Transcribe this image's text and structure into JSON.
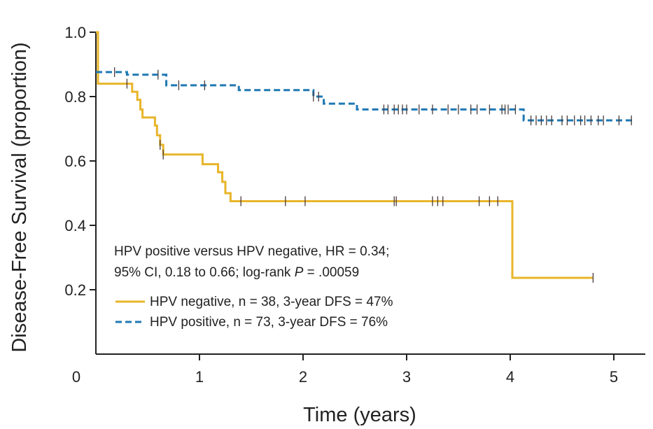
{
  "chart_data": {
    "type": "line",
    "subtype": "kaplan-meier step curves with censor marks",
    "xlabel": "Time (years)",
    "ylabel": "Disease-Free Survival (proportion)",
    "xlim": [
      0,
      5.25
    ],
    "ylim": [
      0,
      1.0
    ],
    "x_ticks": [
      "0",
      "1",
      "2",
      "3",
      "4",
      "5"
    ],
    "y_ticks": [
      "0.2",
      "0.4",
      "0.6",
      "0.8",
      "1.0"
    ],
    "grid": false,
    "annotation": {
      "line1": "HPV positive versus HPV negative, HR = 0.34;",
      "line2_prefix": "95% CI, 0.18 to 0.66; log-rank ",
      "line2_italic": "P",
      "line2_suffix": " = .00059"
    },
    "legend_position": "lower-left",
    "series": [
      {
        "name": "HPV negative, n = 38, 3-year DFS = 47%",
        "color": "#e8b52a",
        "style": "solid",
        "points": [
          [
            0,
            1.0
          ],
          [
            0.02,
            0.84
          ],
          [
            0.3,
            0.84
          ],
          [
            0.35,
            0.815
          ],
          [
            0.4,
            0.79
          ],
          [
            0.43,
            0.76
          ],
          [
            0.45,
            0.735
          ],
          [
            0.55,
            0.735
          ],
          [
            0.57,
            0.71
          ],
          [
            0.59,
            0.68
          ],
          [
            0.62,
            0.65
          ],
          [
            0.65,
            0.62
          ],
          [
            1.03,
            0.62
          ],
          [
            1.03,
            0.59
          ],
          [
            1.15,
            0.59
          ],
          [
            1.18,
            0.565
          ],
          [
            1.22,
            0.535
          ],
          [
            1.25,
            0.5
          ],
          [
            1.3,
            0.475
          ],
          [
            4.02,
            0.475
          ],
          [
            4.02,
            0.237
          ],
          [
            4.8,
            0.237
          ]
        ],
        "censored": [
          0.3,
          0.62,
          0.65,
          1.4,
          1.83,
          2.02,
          2.88,
          2.9,
          3.25,
          3.3,
          3.35,
          3.7,
          3.8,
          3.88,
          4.8
        ]
      },
      {
        "name": "HPV positive, n = 73, 3-year DFS = 76%",
        "color": "#1f78b4",
        "style": "dashed",
        "points": [
          [
            0,
            0.876
          ],
          [
            0.28,
            0.876
          ],
          [
            0.3,
            0.868
          ],
          [
            0.65,
            0.868
          ],
          [
            0.68,
            0.835
          ],
          [
            1.35,
            0.835
          ],
          [
            1.38,
            0.82
          ],
          [
            2.07,
            0.82
          ],
          [
            2.1,
            0.8
          ],
          [
            2.2,
            0.778
          ],
          [
            2.5,
            0.778
          ],
          [
            2.52,
            0.76
          ],
          [
            4.12,
            0.76
          ],
          [
            4.13,
            0.726
          ],
          [
            5.18,
            0.726
          ]
        ],
        "censored": [
          0.18,
          0.6,
          0.8,
          1.05,
          2.1,
          2.15,
          2.78,
          2.82,
          2.88,
          2.92,
          2.96,
          3.0,
          3.12,
          3.25,
          3.4,
          3.5,
          3.62,
          3.68,
          3.8,
          3.92,
          3.95,
          3.98,
          4.05,
          4.2,
          4.25,
          4.3,
          4.35,
          4.4,
          4.5,
          4.55,
          4.62,
          4.68,
          4.72,
          4.78,
          4.85,
          4.9,
          5.05,
          5.17
        ]
      }
    ]
  }
}
